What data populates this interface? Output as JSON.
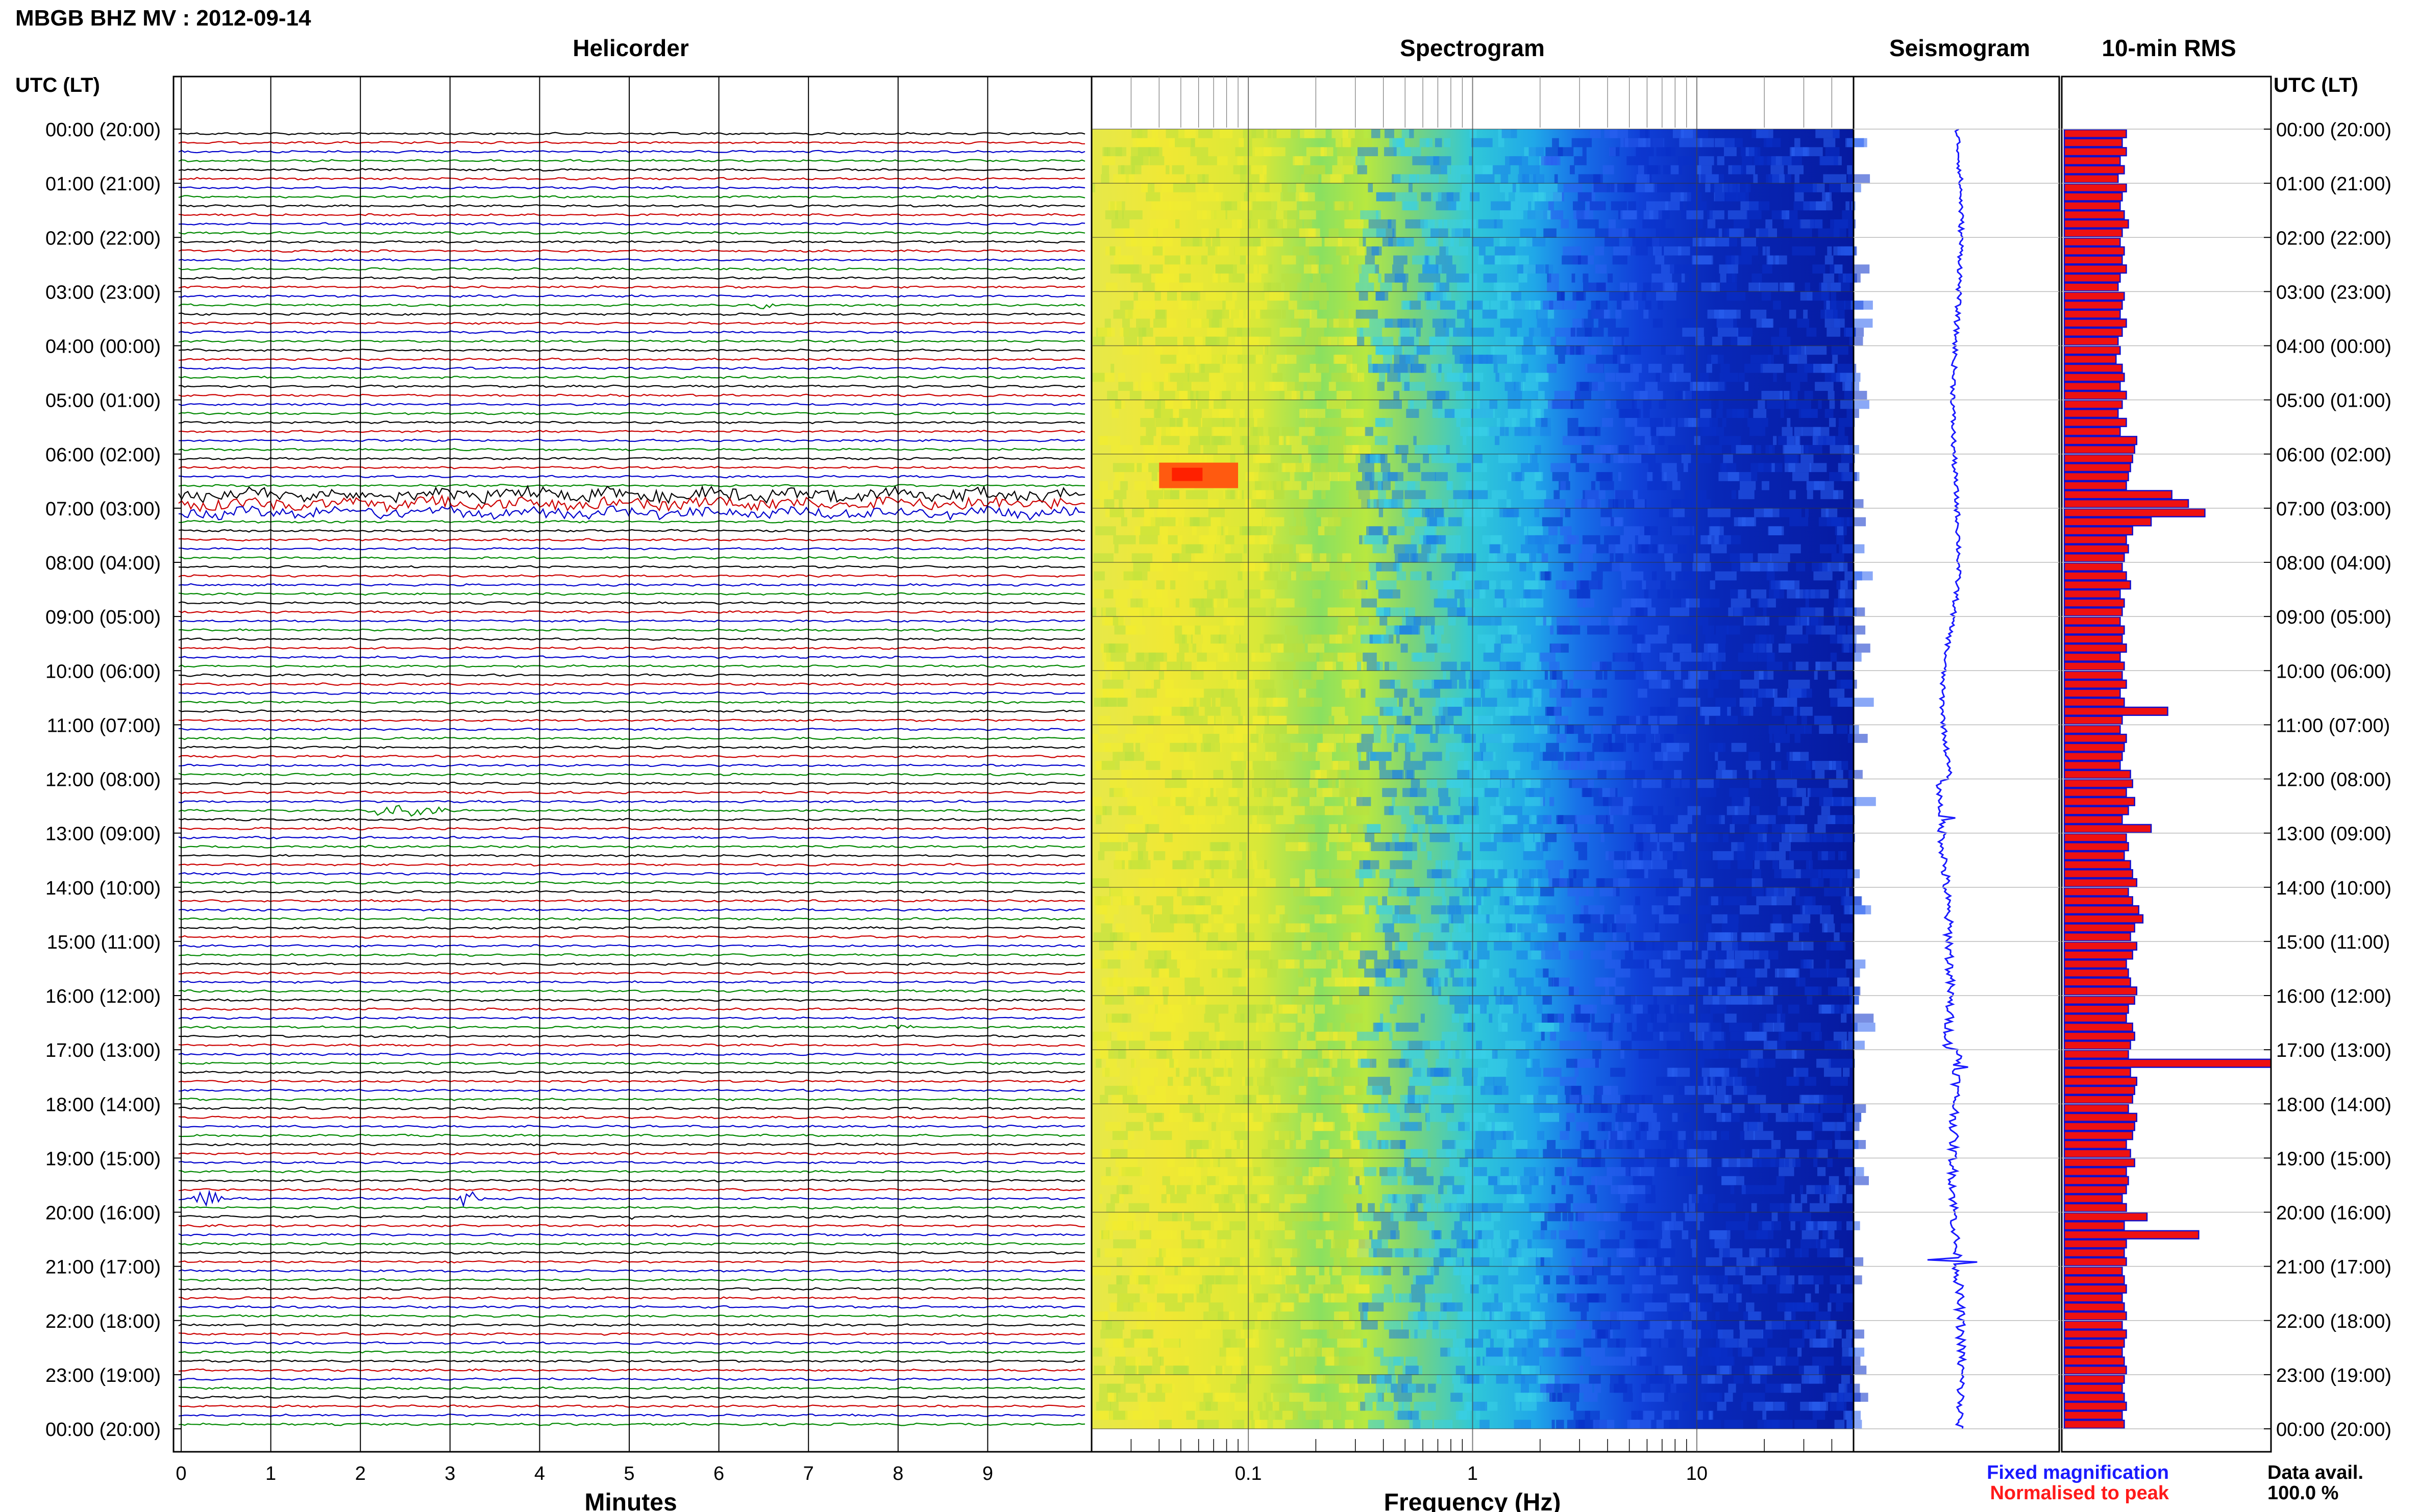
{
  "title": "MBGB BHZ MV : 2012-09-14",
  "panels": {
    "helicorder": "Helicorder",
    "spectrogram": "Spectrogram",
    "seismogram": "Seismogram",
    "rms": "10-min RMS"
  },
  "time_axis_label": "UTC (LT)",
  "time_labels": [
    "00:00 (20:00)",
    "01:00 (21:00)",
    "02:00 (22:00)",
    "03:00 (23:00)",
    "04:00 (00:00)",
    "05:00 (01:00)",
    "06:00 (02:00)",
    "07:00 (03:00)",
    "08:00 (04:00)",
    "09:00 (05:00)",
    "10:00 (06:00)",
    "11:00 (07:00)",
    "12:00 (08:00)",
    "13:00 (09:00)",
    "14:00 (10:00)",
    "15:00 (11:00)",
    "16:00 (12:00)",
    "17:00 (13:00)",
    "18:00 (14:00)",
    "19:00 (15:00)",
    "20:00 (16:00)",
    "21:00 (17:00)",
    "22:00 (18:00)",
    "23:00 (19:00)",
    "00:00 (20:00)"
  ],
  "x_axes": {
    "minutes_label": "Minutes",
    "minutes_ticks": [
      "0",
      "1",
      "2",
      "3",
      "4",
      "5",
      "6",
      "7",
      "8",
      "9"
    ],
    "frequency_label": "Frequency (Hz)",
    "frequency_ticks": [
      "0.1",
      "1",
      "10"
    ]
  },
  "legend": {
    "fixed": "Fixed magnification",
    "normalised": "Normalised to peak",
    "fixed_color": "#1a1aff",
    "normalised_color": "#ff1a1a"
  },
  "data_avail": {
    "label": "Data avail.",
    "value": "100.0 %"
  },
  "colors": {
    "trace_cycle": [
      "#000000",
      "#cc0000",
      "#0000cc",
      "#008800"
    ],
    "rms_fill": "#ee1111",
    "rms_edge": "#1111cc",
    "seismo": "#1a1aff"
  },
  "chart_data": [
    {
      "type": "line",
      "title": "Helicorder",
      "xlabel": "Minutes",
      "x_range": [
        0,
        10
      ],
      "rows_per_hour": 6,
      "hours": 24,
      "events": [
        {
          "row": 118,
          "minute": 0.3,
          "width": 0.4,
          "amp": 3
        },
        {
          "row": 118,
          "minute": 3.2,
          "width": 0.35,
          "amp": 3
        },
        {
          "row": 75,
          "minute": 2.5,
          "width": 1.1,
          "amp": 2.5
        },
        {
          "row": 19,
          "minute": 6.5,
          "width": 0.4,
          "amp": 1.2
        },
        {
          "row": 120,
          "minute": 5.0,
          "width": 0.3,
          "amp": 1.5
        },
        {
          "row": 99,
          "minute": 8.0,
          "width": 0.4,
          "amp": 1.5
        },
        {
          "row": 40,
          "minute": 5.0,
          "width": 10,
          "amp": 2.2
        },
        {
          "row": 41,
          "minute": 5.0,
          "width": 10,
          "amp": 2.0
        },
        {
          "row": 42,
          "minute": 5.0,
          "width": 10,
          "amp": 1.8
        }
      ]
    },
    {
      "type": "heatmap",
      "title": "Spectrogram",
      "xlabel": "Frequency (Hz)",
      "x_scale": "log",
      "x_range": [
        0.02,
        50
      ],
      "bright_spot": {
        "hour": 6.3,
        "freq_range": [
          0.04,
          0.09
        ]
      }
    },
    {
      "type": "line",
      "title": "Seismogram",
      "spikes_hour": [
        12.7,
        17.3,
        20.9
      ]
    },
    {
      "type": "bar",
      "title": "10-min RMS",
      "unit": "relative",
      "xlim": [
        0,
        1
      ],
      "values": [
        0.3,
        0.28,
        0.3,
        0.27,
        0.29,
        0.26,
        0.3,
        0.28,
        0.27,
        0.29,
        0.31,
        0.28,
        0.27,
        0.29,
        0.28,
        0.3,
        0.27,
        0.26,
        0.29,
        0.28,
        0.27,
        0.3,
        0.28,
        0.26,
        0.27,
        0.25,
        0.28,
        0.29,
        0.27,
        0.3,
        0.28,
        0.26,
        0.3,
        0.27,
        0.35,
        0.34,
        0.33,
        0.32,
        0.31,
        0.3,
        0.52,
        0.6,
        0.68,
        0.42,
        0.33,
        0.3,
        0.31,
        0.29,
        0.28,
        0.3,
        0.32,
        0.27,
        0.29,
        0.28,
        0.27,
        0.29,
        0.28,
        0.3,
        0.27,
        0.29,
        0.28,
        0.3,
        0.27,
        0.29,
        0.5,
        0.28,
        0.27,
        0.3,
        0.29,
        0.28,
        0.27,
        0.32,
        0.33,
        0.3,
        0.34,
        0.31,
        0.28,
        0.42,
        0.3,
        0.31,
        0.29,
        0.32,
        0.33,
        0.35,
        0.31,
        0.33,
        0.36,
        0.38,
        0.34,
        0.32,
        0.35,
        0.33,
        0.3,
        0.31,
        0.32,
        0.35,
        0.34,
        0.31,
        0.3,
        0.33,
        0.34,
        0.32,
        0.31,
        1.0,
        0.32,
        0.35,
        0.34,
        0.33,
        0.31,
        0.35,
        0.34,
        0.33,
        0.3,
        0.32,
        0.34,
        0.3,
        0.31,
        0.3,
        0.28,
        0.3,
        0.4,
        0.29,
        0.65,
        0.3,
        0.29,
        0.3,
        0.28,
        0.29,
        0.3,
        0.28,
        0.29,
        0.3,
        0.28,
        0.3,
        0.29,
        0.28,
        0.29,
        0.3,
        0.29,
        0.28,
        0.29,
        0.3,
        0.28,
        0.29
      ]
    }
  ]
}
